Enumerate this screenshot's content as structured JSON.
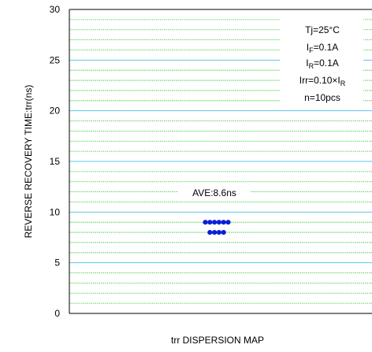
{
  "chart_data": {
    "type": "scatter",
    "title": "",
    "xlabel": "trr DISPERSION MAP",
    "ylabel": "REVERSE RECOVERY TIME:trr(ns)",
    "ylim": [
      0,
      30
    ],
    "y_ticks": [
      "0",
      "5",
      "10",
      "15",
      "20",
      "25",
      "30"
    ],
    "major_gridline_every": 5,
    "minor_gridline_every": 1,
    "major_grid_color": "#5bc8e8",
    "minor_grid_color": "#33cc33",
    "point_color": "#0a1fd6",
    "points_per_row": 6,
    "series": [
      {
        "values": [
          9,
          9,
          9,
          9,
          9,
          9,
          8,
          8,
          8,
          8
        ]
      }
    ],
    "annotations": {
      "ave": "AVE:8.6ns",
      "cond_tj": "Tj=25°C",
      "cond_if_main": "I",
      "cond_if_sub": "F",
      "cond_if_val": "=0.1A",
      "cond_ir_main": "I",
      "cond_ir_sub": "R",
      "cond_ir_val": "=0.1A",
      "cond_irr_main": "Irr=0.10×I",
      "cond_irr_sub": "R",
      "cond_n": "n=10pcs"
    }
  }
}
